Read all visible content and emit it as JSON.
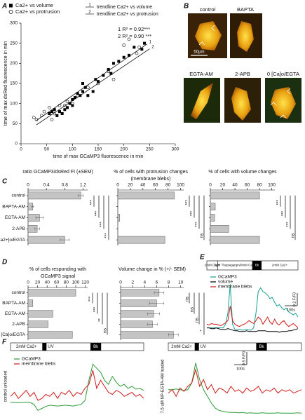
{
  "panels": [
    "A",
    "B",
    "C",
    "D",
    "E",
    "F"
  ],
  "images": {
    "labels": [
      "control",
      "BAPTA",
      "EGTA-AM",
      "2-APB",
      "0 [Ca]o/EGTA"
    ],
    "scale_bar": "50µm"
  },
  "chart_data": [
    {
      "type": "scatter",
      "xlabel": "time of max GCaMP3 fluorescence in min",
      "ylabel": "time of max dsRed fluorescence in min",
      "xlim": [
        0,
        300
      ],
      "xticks": [
        0,
        50,
        100,
        150,
        200,
        250,
        300
      ],
      "ylim": [
        0,
        300
      ],
      "yticks": [
        0,
        50,
        100,
        150,
        200,
        250,
        300
      ],
      "series": [
        {
          "name": "Ca2+ vs volume",
          "marker": "square",
          "color": "#000000",
          "x": [
            55,
            60,
            65,
            70,
            75,
            80,
            85,
            90,
            95,
            100,
            100,
            105,
            110,
            115,
            120,
            120,
            125,
            130,
            140,
            145,
            150,
            160,
            170,
            175,
            180,
            190,
            200,
            210,
            220,
            235,
            240
          ],
          "y": [
            75,
            80,
            85,
            70,
            80,
            75,
            85,
            90,
            100,
            95,
            110,
            115,
            125,
            120,
            150,
            130,
            140,
            120,
            130,
            160,
            155,
            170,
            185,
            175,
            200,
            205,
            215,
            220,
            240,
            235,
            250
          ]
        },
        {
          "name": "Ca2+ vs protrusion",
          "marker": "circle-open",
          "color": "#000000",
          "x": [
            25,
            30,
            40,
            45,
            55,
            60,
            65,
            75,
            85,
            90,
            100,
            110,
            130,
            150,
            170,
            180,
            200,
            210,
            225,
            230
          ],
          "y": [
            65,
            60,
            70,
            80,
            90,
            60,
            75,
            95,
            95,
            105,
            100,
            120,
            140,
            150,
            180,
            160,
            245,
            260,
            225,
            240
          ]
        }
      ],
      "trendlines": [
        {
          "label": "1",
          "name": "trendline Ca2+ vs volume",
          "x": [
            30,
            245
          ],
          "y": [
            58,
            248
          ]
        },
        {
          "label": "2",
          "name": "trendline Ca2+ vs protrusion",
          "x": [
            30,
            250
          ],
          "y": [
            47,
            236
          ]
        }
      ],
      "annotations": [
        "1 R² = 0.92***",
        "2 R² = 0.90 ***"
      ]
    },
    {
      "type": "bar",
      "orientation": "horizontal",
      "title": [
        "ratio GCaMP3/dsRed FI (±SEM)"
      ],
      "categories": [
        "control",
        "BAPTA-AM",
        "EGTA-AM",
        "2-APB",
        "0 [Ca2+]o/EGTA"
      ],
      "values": [
        1.15,
        0.1,
        0.25,
        0.2,
        0.8
      ],
      "errors": [
        0.05,
        0.02,
        0.08,
        0.05,
        0.1
      ],
      "xlim": [
        0,
        1.3
      ],
      "xticks": [
        0,
        0.4,
        0.8,
        1.2
      ],
      "color": "#c4c4c4",
      "significance": [
        "***",
        "***",
        "***",
        "***"
      ]
    },
    {
      "type": "bar",
      "orientation": "horizontal",
      "title": [
        "% of cells with protrusion changes",
        "(membrane blebs)"
      ],
      "categories": [
        "control",
        "BAPTA-AM",
        "EGTA-AM",
        "2-APB",
        "0 [Ca2+]o/EGTA"
      ],
      "values": [
        90,
        0,
        3,
        0,
        75
      ],
      "xlim": [
        0,
        105
      ],
      "xticks": [
        0,
        20,
        40,
        60,
        80,
        100
      ],
      "color": "#c4c4c4",
      "significance": [
        "***",
        "***",
        "***",
        "ns"
      ]
    },
    {
      "type": "bar",
      "orientation": "horizontal",
      "title": [
        "% of cells with volume changes"
      ],
      "categories": [
        "control",
        "BAPTA-AM",
        "EGTA-AM",
        "2-APB",
        "0 [Ca2+]o/EGTA"
      ],
      "values": [
        80,
        8,
        7,
        30,
        80
      ],
      "xlim": [
        0,
        105
      ],
      "xticks": [
        0,
        20,
        40,
        60,
        80,
        100
      ],
      "color": "#c4c4c4",
      "significance": [
        "***",
        "***",
        "***",
        "ns"
      ]
    },
    {
      "type": "bar",
      "orientation": "horizontal",
      "title": [
        "% of cells responding with",
        "GCaMP3 signal"
      ],
      "categories": [
        "control",
        "BAPTA-AM",
        "EGTA-AM",
        "2-APB",
        "0 [Ca]o/EGTA"
      ],
      "values": [
        100,
        10,
        52,
        42,
        93
      ],
      "xlim": [
        0,
        125
      ],
      "xticks": [
        0,
        20,
        40,
        60,
        80,
        100,
        120
      ],
      "color": "#c4c4c4",
      "significance": [
        "***",
        "***",
        "**",
        "ns"
      ]
    },
    {
      "type": "bar",
      "orientation": "horizontal",
      "title": [
        "Volume change in % (+/- SEM)"
      ],
      "categories": [
        "control",
        "BAPTA-AM",
        "EGTA-AM",
        "2-APB",
        "0 [Ca]o/EGTA"
      ],
      "values": [
        6.4,
        6.0,
        5.5,
        5.3,
        8.8
      ],
      "errors": [
        0.8,
        1.2,
        1.0,
        0.8,
        0.8
      ],
      "xlim": [
        0,
        10.5
      ],
      "xticks": [
        0,
        2,
        4,
        6,
        8,
        10
      ],
      "color": "#c4c4c4",
      "significance": [
        "ns",
        "ns",
        "ns",
        "*"
      ]
    },
    {
      "type": "line",
      "events": [
        "2mM Ca2+",
        "5µM Thapsigargin/0mM Ca2+",
        "Bk",
        "2mM Ca2+"
      ],
      "ylim": [
        0.9,
        1.7
      ],
      "scale_y": "0.2 F/F0",
      "scale_x": "100s",
      "series": [
        {
          "name": "GCaMP3",
          "color": "#18a090",
          "values": [
            1.0,
            1.0,
            1.0,
            1.0,
            1.0,
            1.0,
            1.0,
            1.0,
            1.05,
            1.2,
            1.6,
            1.05,
            0.98,
            0.97,
            0.98,
            0.97,
            0.97,
            0.98,
            0.97,
            0.97,
            1.0,
            1.2,
            1.5,
            1.55,
            1.5,
            1.48,
            1.45,
            1.4,
            1.42,
            1.35,
            1.3,
            1.32,
            1.28,
            1.25,
            1.27,
            1.22,
            1.2,
            1.18,
            1.2,
            1.15
          ]
        },
        {
          "name": "volume",
          "color": "#000000",
          "values": [
            1.0,
            1.0,
            0.99,
            0.99,
            1.0,
            0.99,
            0.98,
            0.98,
            0.98,
            0.99,
            0.98,
            0.97,
            0.96,
            0.96,
            0.95,
            0.95,
            0.95,
            0.96,
            0.95,
            0.95,
            0.95,
            0.95,
            0.96,
            0.96,
            0.96,
            0.96,
            0.95,
            0.95,
            0.95,
            0.95,
            0.95,
            0.94,
            0.95,
            0.95,
            0.95,
            0.96,
            0.96,
            0.97,
            0.98,
            0.99
          ]
        },
        {
          "name": "membrane blebs",
          "color": "#d01818",
          "values": [
            1.05,
            1.04,
            1.06,
            1.05,
            1.05,
            1.04,
            1.03,
            1.05,
            1.07,
            1.1,
            1.3,
            1.1,
            1.05,
            1.03,
            1.02,
            1.04,
            1.05,
            1.07,
            1.1,
            1.08,
            1.06,
            1.1,
            1.15,
            1.12,
            1.05,
            1.1,
            1.15,
            1.08,
            1.05,
            1.12,
            1.06,
            1.04,
            1.08,
            1.1,
            1.05,
            1.02,
            1.04,
            1.06,
            1.03,
            1.0
          ]
        }
      ]
    },
    {
      "type": "line",
      "events": [
        "2mM Ca2+",
        "UV",
        "Bk"
      ],
      "ylabel": "control unloaded",
      "ylim": [
        0.7,
        2.2
      ],
      "series": [
        {
          "name": "GCaMP3",
          "color": "#2e9a3a",
          "values": [
            1.05,
            1.05,
            1.04,
            1.05,
            1.06,
            1.05,
            1.0,
            0.85,
            0.9,
            0.95,
            0.98,
            0.97,
            0.96,
            0.97,
            0.98,
            0.97,
            0.96,
            0.98,
            1.0,
            1.1,
            1.6,
            2.0,
            1.9,
            1.8,
            1.6,
            1.5,
            1.7,
            1.55,
            1.45,
            1.5,
            1.4,
            1.45,
            1.38,
            1.4,
            1.35
          ]
        },
        {
          "name": "membrane blebs",
          "color": "#d01818",
          "values": [
            1.2,
            1.3,
            1.15,
            1.25,
            1.35,
            1.2,
            1.3,
            1.1,
            1.15,
            1.25,
            1.2,
            1.3,
            1.15,
            1.3,
            1.25,
            1.35,
            1.2,
            1.3,
            1.25,
            1.4,
            1.5,
            1.85,
            1.4,
            1.6,
            1.45,
            1.3,
            1.25,
            1.35,
            1.3,
            1.2,
            1.25,
            1.3,
            1.2,
            1.25,
            1.15
          ]
        }
      ]
    },
    {
      "type": "line",
      "events": [
        "2mM Ca2+",
        "UV",
        "Bk"
      ],
      "ylabel": "7.5 uM NP-EGTA-AM loaded",
      "ylim": [
        0.5,
        2.3
      ],
      "scale_y": "0.5 F/F0",
      "scale_x": "100s",
      "series": [
        {
          "color": "#2e9a3a",
          "values": [
            1.3,
            1.3,
            1.32,
            1.3,
            1.28,
            1.3,
            1.5,
            2.1,
            1.6,
            1.3,
            1.1,
            0.9,
            0.75,
            0.68,
            0.65,
            0.63,
            0.62,
            0.62,
            0.61,
            0.62,
            0.6,
            0.61,
            0.6,
            0.6,
            0.61,
            0.6,
            0.6,
            0.6,
            0.61,
            0.6,
            0.6,
            0.6,
            0.6,
            0.61,
            0.6
          ]
        },
        {
          "color": "#d01818",
          "values": [
            1.2,
            1.3,
            1.1,
            1.35,
            1.25,
            1.4,
            1.5,
            1.9,
            1.4,
            1.6,
            1.3,
            1.45,
            1.2,
            1.35,
            1.3,
            1.2,
            1.4,
            1.25,
            1.3,
            1.2,
            1.35,
            1.25,
            1.3,
            1.4,
            1.2,
            1.3,
            1.25,
            1.35,
            1.2,
            1.3,
            1.25,
            1.3,
            1.2,
            1.25,
            1.3
          ]
        }
      ]
    }
  ]
}
